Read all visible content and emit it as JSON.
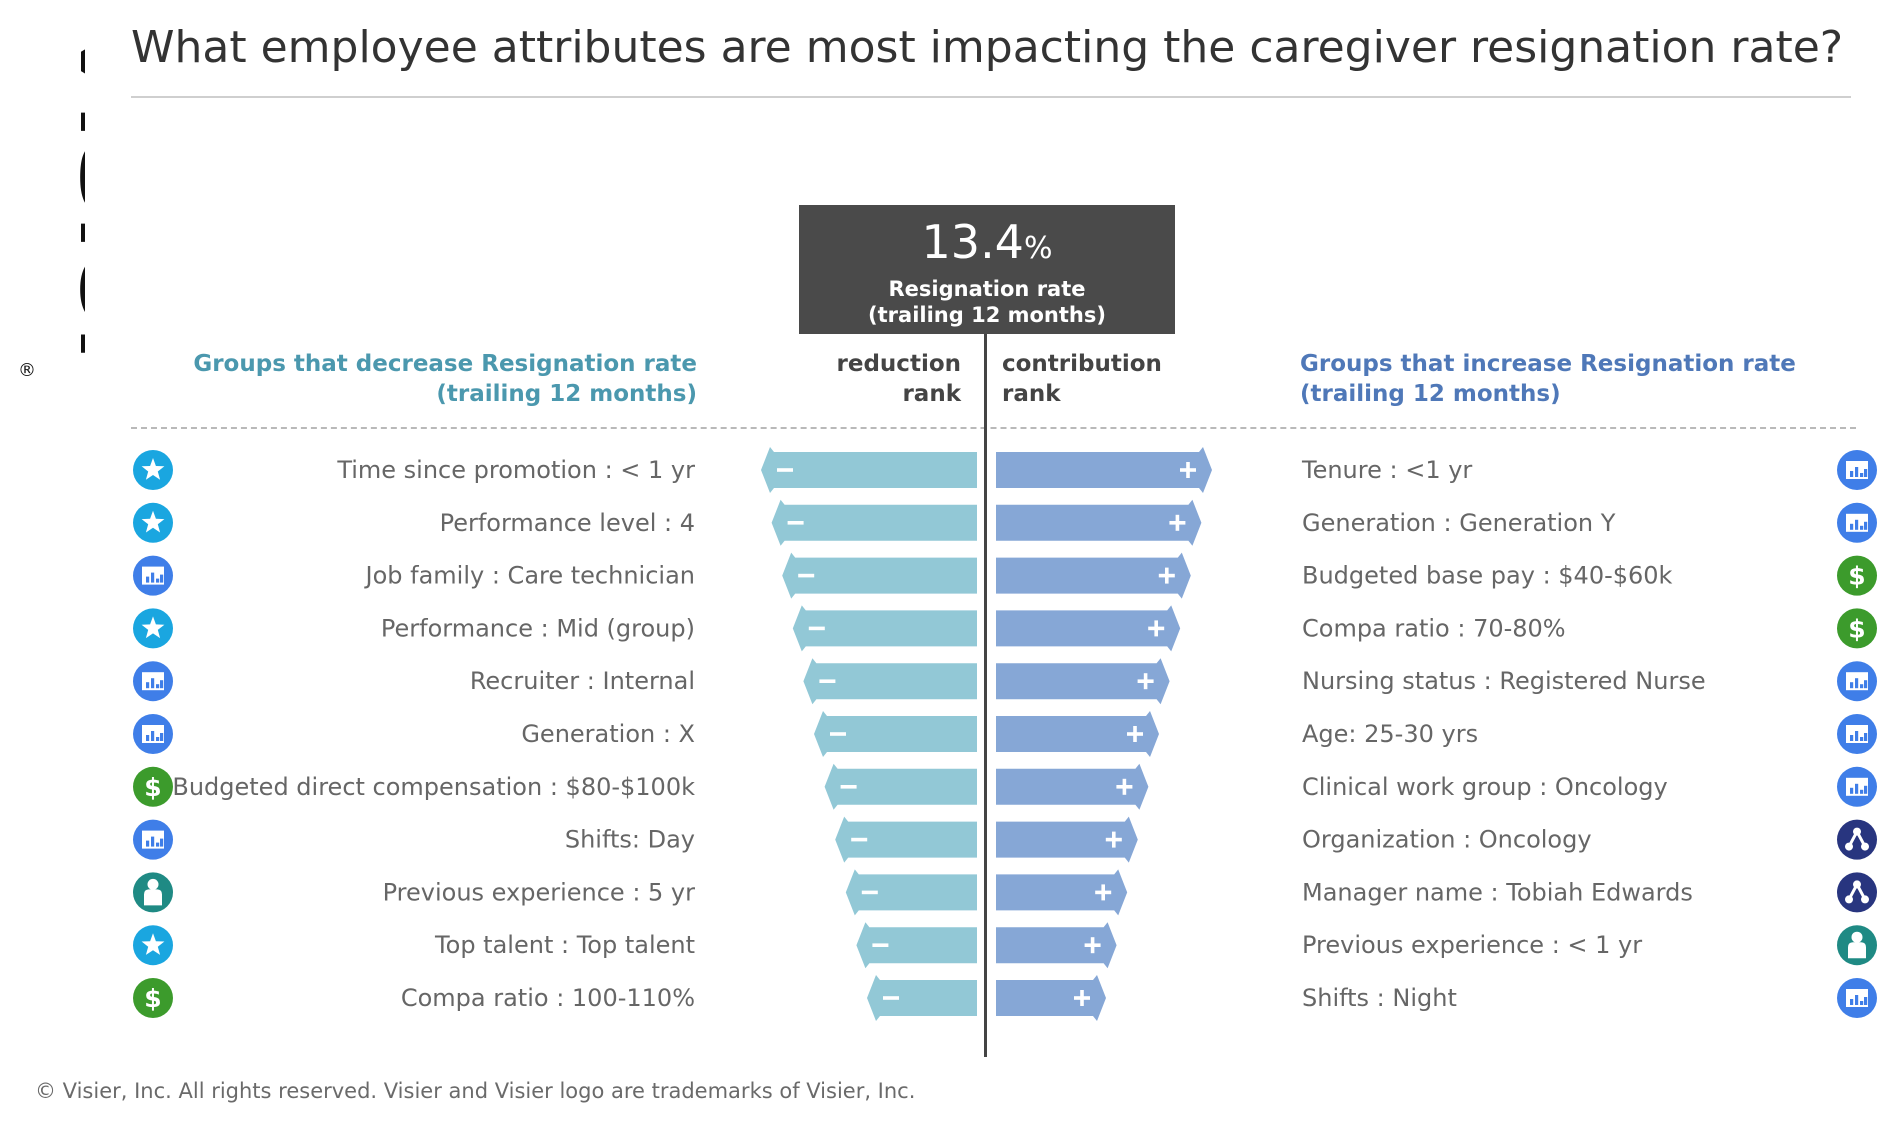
{
  "brand": {
    "logo_text": "Visier",
    "registered_mark": "®"
  },
  "title": "What employee attributes are most impacting the caregiver resignation rate?",
  "kpi": {
    "value": "13.4",
    "unit": "%",
    "label_line1": "Resignation rate",
    "label_line2": "(trailing 12 months)"
  },
  "headers": {
    "left_line1": "Groups that decrease Resignation rate",
    "left_line2": "(trailing 12 months)",
    "right_line1": "Groups that increase Resignation rate",
    "right_line2": "(trailing 12 months)",
    "reduction_line1": "reduction",
    "reduction_line2": "rank",
    "contribution_line1": "contribution",
    "contribution_line2": "rank"
  },
  "colors": {
    "decrease_arrow": "#92c8d6",
    "increase_arrow": "#86a7d6",
    "star": "#1aa6e0",
    "chart_icon": "#3f7ee8",
    "dollar": "#3c9b2c",
    "person": "#1f8a84",
    "org": "#28357f"
  },
  "chart_data": {
    "type": "diverging-rank",
    "left_series_name": "reduction rank",
    "right_series_name": "contribution rank",
    "decrease": [
      {
        "label": "Time since promotion : < 1 yr",
        "icon": "star-icon",
        "value": 11
      },
      {
        "label": "Performance level : 4",
        "icon": "star-icon",
        "value": 10
      },
      {
        "label": "Job family : Care technician",
        "icon": "chart-icon",
        "value": 9
      },
      {
        "label": "Performance : Mid (group)",
        "icon": "star-icon",
        "value": 8
      },
      {
        "label": "Recruiter :  Internal",
        "icon": "chart-icon",
        "value": 7
      },
      {
        "label": "Generation : X",
        "icon": "chart-icon",
        "value": 6
      },
      {
        "label": "Budgeted direct compensation : $80-$100k",
        "icon": "dollar-icon",
        "value": 5
      },
      {
        "label": "Shifts: Day",
        "icon": "chart-icon",
        "value": 4
      },
      {
        "label": "Previous experience : 5 yr",
        "icon": "person-icon",
        "value": 3
      },
      {
        "label": "Top talent : Top talent",
        "icon": "star-icon",
        "value": 2
      },
      {
        "label": "Compa ratio : 100-110%",
        "icon": "dollar-icon",
        "value": 1
      }
    ],
    "increase": [
      {
        "label": "Tenure : <1 yr",
        "icon": "chart-icon",
        "value": 11
      },
      {
        "label": "Generation : Generation Y",
        "icon": "chart-icon",
        "value": 10
      },
      {
        "label": "Budgeted base pay : $40-$60k",
        "icon": "dollar-icon",
        "value": 9
      },
      {
        "label": "Compa ratio : 70-80%",
        "icon": "dollar-icon",
        "value": 8
      },
      {
        "label": "Nursing status : Registered Nurse",
        "icon": "chart-icon",
        "value": 7
      },
      {
        "label": "Age: 25-30 yrs",
        "icon": "chart-icon",
        "value": 6
      },
      {
        "label": "Clinical work group : Oncology",
        "icon": "chart-icon",
        "value": 5
      },
      {
        "label": "Organization : Oncology",
        "icon": "org-icon",
        "value": 4
      },
      {
        "label": "Manager name : Tobiah Edwards",
        "icon": "org-icon",
        "value": 3
      },
      {
        "label": "Previous experience : < 1 yr",
        "icon": "person-icon",
        "value": 2
      },
      {
        "label": "Shifts : Night",
        "icon": "chart-icon",
        "value": 1
      }
    ]
  },
  "footer": "© Visier, Inc. All rights reserved. Visier and Visier logo are trademarks of Visier, Inc."
}
